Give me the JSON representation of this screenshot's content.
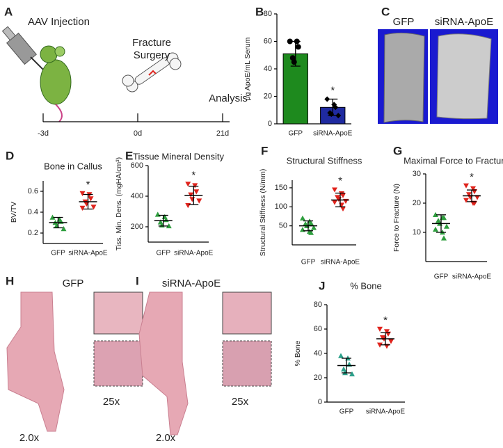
{
  "panel_labels": [
    "A",
    "B",
    "C",
    "D",
    "E",
    "F",
    "G",
    "H",
    "I",
    "J"
  ],
  "timeline": {
    "injection": "AAV Injection",
    "surgery_lines": [
      "Fracture",
      "Surgery"
    ],
    "analysis": "Analysis",
    "ticks": [
      "-3d",
      "0d",
      "21d"
    ]
  },
  "micro_ct": {
    "labels": [
      "GFP",
      "siRNA-ApoE"
    ]
  },
  "histology": {
    "h": {
      "title": "GFP",
      "low": "2.0x",
      "high": "25x"
    },
    "i": {
      "title": "siRNA-ApoE",
      "low": "2.0x",
      "high": "25x"
    }
  },
  "chart_data": [
    {
      "type": "bar",
      "ylabel": "μg ApoE/mL Serum",
      "categories": [
        "GFP",
        "siRNA-ApoE"
      ],
      "colors": [
        "#1e8a1e",
        "#1f2aa0"
      ],
      "markers": [
        "circle",
        "diamond"
      ],
      "means": [
        51,
        12
      ],
      "sds": [
        9,
        6
      ],
      "points": [
        [
          60,
          60,
          56,
          48,
          45
        ],
        [
          18,
          14,
          12,
          8,
          7,
          6
        ]
      ],
      "ylim": [
        0,
        80
      ],
      "yticks": [
        0,
        20,
        40,
        60,
        80
      ],
      "annotation": "*"
    },
    {
      "type": "dot",
      "title": "Bone in Callus",
      "ylabel": "BV/TV",
      "categories": [
        "GFP",
        "siRNA-ApoE"
      ],
      "colors": [
        "#2e9e3e",
        "#e0231c"
      ],
      "markers": [
        "triangle-up",
        "triangle-down"
      ],
      "means": [
        0.3,
        0.5
      ],
      "sds": [
        0.05,
        0.07
      ],
      "points": [
        [
          0.35,
          0.33,
          0.31,
          0.3,
          0.27,
          0.24
        ],
        [
          0.58,
          0.57,
          0.53,
          0.5,
          0.48,
          0.45,
          0.44
        ]
      ],
      "ylim": [
        0.1,
        0.7
      ],
      "yticks": [
        0.2,
        0.4,
        0.6
      ],
      "annotation": "*"
    },
    {
      "type": "dot",
      "title": "Tissue Mineral Density",
      "ylabel": "Tiss. Min. Dens. (mgHA/cm³)",
      "categories": [
        "GFP",
        "siRNA-ApoE"
      ],
      "colors": [
        "#2e9e3e",
        "#e0231c"
      ],
      "markers": [
        "triangle-up",
        "triangle-down"
      ],
      "means": [
        240,
        405
      ],
      "sds": [
        35,
        60
      ],
      "points": [
        [
          280,
          265,
          245,
          230,
          210,
          205
        ],
        [
          480,
          470,
          430,
          410,
          380,
          370,
          340
        ]
      ],
      "ylim": [
        100,
        600
      ],
      "yticks": [
        200,
        400,
        600
      ],
      "annotation": "*"
    },
    {
      "type": "dot",
      "title": "Structural Stiffness",
      "ylabel": "Structural Stiffness (N/mm)",
      "categories": [
        "GFP",
        "siRNA-ApoE"
      ],
      "colors": [
        "#2e9e3e",
        "#e0231c"
      ],
      "markers": [
        "triangle-up",
        "triangle-down"
      ],
      "means": [
        50,
        118
      ],
      "sds": [
        13,
        18
      ],
      "points": [
        [
          70,
          62,
          57,
          55,
          50,
          45,
          40,
          35,
          32
        ],
        [
          145,
          135,
          130,
          125,
          120,
          115,
          112,
          105,
          95
        ]
      ],
      "ylim": [
        0,
        170
      ],
      "yticks": [
        50,
        100,
        150
      ],
      "annotation": "*"
    },
    {
      "type": "dot",
      "title": "Maximal Force to Fracture",
      "ylabel": "Force to Fracture (N)",
      "categories": [
        "GFP",
        "siRNA-ApoE"
      ],
      "colors": [
        "#2e9e3e",
        "#e0231c"
      ],
      "markers": [
        "triangle-up",
        "triangle-down"
      ],
      "means": [
        13,
        22.5
      ],
      "sds": [
        3,
        2
      ],
      "points": [
        [
          16,
          15,
          15,
          14,
          13,
          12,
          11,
          10,
          8
        ],
        [
          26,
          25,
          24,
          23,
          22,
          22,
          21,
          20,
          20
        ]
      ],
      "ylim": [
        0,
        30
      ],
      "yticks": [
        10,
        20,
        30
      ],
      "annotation": "*"
    },
    {
      "type": "dot",
      "title": "% Bone",
      "ylabel": "% Bone",
      "categories": [
        "GFP",
        "siRNA-ApoE"
      ],
      "colors": [
        "#2aa08a",
        "#e0231c"
      ],
      "markers": [
        "triangle-up",
        "triangle-down"
      ],
      "means": [
        30,
        52
      ],
      "sds": [
        6,
        5
      ],
      "points": [
        [
          38,
          36,
          31,
          27,
          24,
          23
        ],
        [
          60,
          58,
          56,
          53,
          52,
          50,
          47,
          46
        ]
      ],
      "ylim": [
        0,
        80
      ],
      "yticks": [
        0,
        20,
        40,
        60,
        80
      ],
      "annotation": "*"
    }
  ]
}
